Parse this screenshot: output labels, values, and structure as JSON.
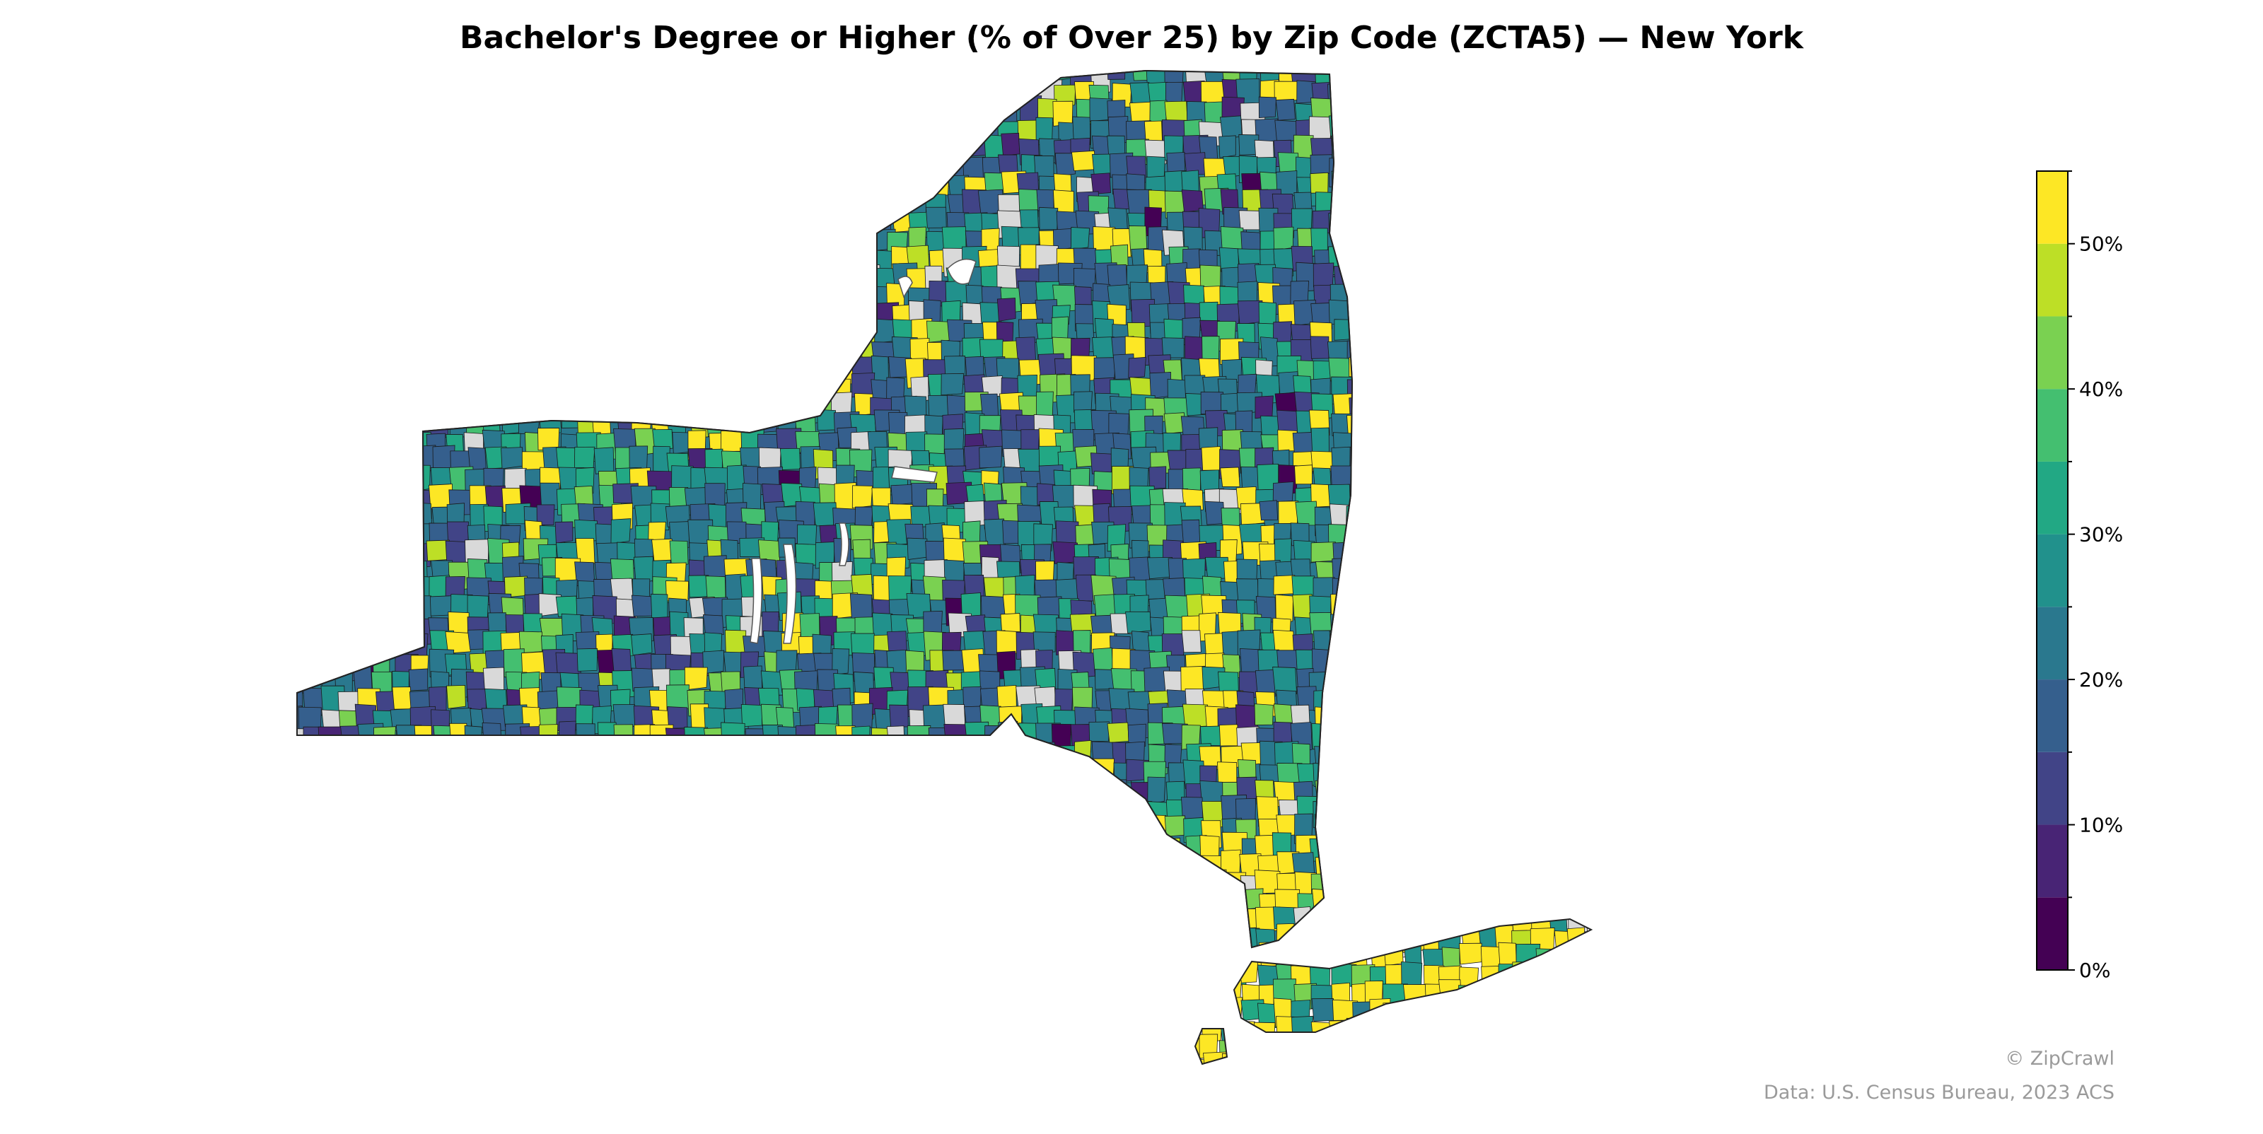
{
  "title": "Bachelor's Degree or Higher (% of Over 25) by Zip Code (ZCTA5) — New York",
  "legend": {
    "type": "colorbar",
    "placement": "right",
    "min": 0,
    "max": 55,
    "ticks": [
      {
        "value": 0,
        "label": "0%"
      },
      {
        "value": 10,
        "label": "10%"
      },
      {
        "value": 20,
        "label": "20%"
      },
      {
        "value": 30,
        "label": "30%"
      },
      {
        "value": 40,
        "label": "40%"
      },
      {
        "value": 50,
        "label": "50%"
      }
    ],
    "bins": [
      {
        "from": 0,
        "to": 5,
        "color": "#440154"
      },
      {
        "from": 5,
        "to": 10,
        "color": "#482475"
      },
      {
        "from": 10,
        "to": 15,
        "color": "#414487"
      },
      {
        "from": 15,
        "to": 20,
        "color": "#355f8d"
      },
      {
        "from": 20,
        "to": 25,
        "color": "#2a788e"
      },
      {
        "from": 25,
        "to": 30,
        "color": "#21918c"
      },
      {
        "from": 30,
        "to": 35,
        "color": "#22a884"
      },
      {
        "from": 35,
        "to": 40,
        "color": "#44bf70"
      },
      {
        "from": 40,
        "to": 45,
        "color": "#7ad151"
      },
      {
        "from": 45,
        "to": 50,
        "color": "#bddf26"
      },
      {
        "from": 50,
        "to": 55,
        "color": "#fde725"
      }
    ],
    "no_data_color": "#d9d9d9"
  },
  "credits": {
    "brand": "© ZipCrawl",
    "source": "Data: U.S. Census Bureau, 2023 ACS"
  }
}
